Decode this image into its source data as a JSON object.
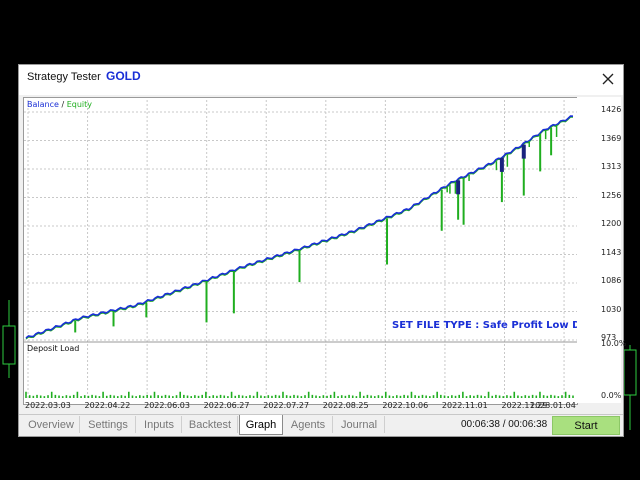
{
  "window": {
    "title": "Strategy Tester",
    "symbol": "GOLD",
    "close_icon": "close-icon"
  },
  "legend": {
    "balance": "Balance",
    "separator": "/",
    "equity": "Equity"
  },
  "annotation": "SET FILE TYPE : Safe Profit Low DD",
  "deposit_load_label": "Deposit Load",
  "colors": {
    "balance": "#1a2fd6",
    "equity": "#1fae1f",
    "deposit": "#1fae1f",
    "accent": "#1a2fd6",
    "start": "#a9e07f"
  },
  "tabs": [
    {
      "label": "Overview",
      "active": false
    },
    {
      "label": "Settings",
      "active": false
    },
    {
      "label": "Inputs",
      "active": false
    },
    {
      "label": "Backtest",
      "active": false
    },
    {
      "label": "Graph",
      "active": true
    },
    {
      "label": "Agents",
      "active": false
    },
    {
      "label": "Journal",
      "active": false
    }
  ],
  "status": {
    "timer": "00:06:38 / 00:06:38",
    "start_label": "Start"
  },
  "chart_data": [
    {
      "type": "line",
      "title": "",
      "xlabel": "",
      "ylabel": "",
      "ylim": [
        973,
        1426
      ],
      "y_ticks": [
        "1426",
        "1369",
        "1313",
        "1256",
        "1200",
        "1143",
        "1086",
        "1030",
        "973"
      ],
      "x_ticks": [
        "2022.03.03",
        "2022.04.22",
        "2022.06.03",
        "2022.06.27",
        "2022.07.27",
        "2022.08.25",
        "2022.10.06",
        "2022.11.01",
        "2022.11.29",
        "2023.01.04"
      ],
      "grid": true,
      "series": [
        {
          "name": "Balance",
          "x": [
            0,
            0.1,
            0.2,
            0.3,
            0.4,
            0.5,
            0.6,
            0.7,
            0.78,
            0.85,
            0.9,
            0.95,
            1.0
          ],
          "values": [
            975,
            1015,
            1040,
            1078,
            1118,
            1152,
            1188,
            1232,
            1285,
            1322,
            1354,
            1390,
            1416
          ]
        },
        {
          "name": "Equity",
          "dips": [
            {
              "x": 0.09,
              "value": 988
            },
            {
              "x": 0.16,
              "value": 1000
            },
            {
              "x": 0.22,
              "value": 1018
            },
            {
              "x": 0.33,
              "value": 1008
            },
            {
              "x": 0.38,
              "value": 1026
            },
            {
              "x": 0.5,
              "value": 1088
            },
            {
              "x": 0.66,
              "value": 1123
            },
            {
              "x": 0.76,
              "value": 1190
            },
            {
              "x": 0.79,
              "value": 1212
            },
            {
              "x": 0.8,
              "value": 1202
            },
            {
              "x": 0.87,
              "value": 1247
            },
            {
              "x": 0.91,
              "value": 1260
            },
            {
              "x": 0.94,
              "value": 1308
            },
            {
              "x": 0.96,
              "value": 1340
            }
          ]
        }
      ]
    },
    {
      "type": "bar",
      "title": "Deposit Load",
      "ylim": [
        0,
        10
      ],
      "y_ticks": [
        "10.0%",
        "0.0%"
      ],
      "bar_count": 150,
      "values_pct_typical": 0.6,
      "values_pct_max": 1.2
    }
  ]
}
